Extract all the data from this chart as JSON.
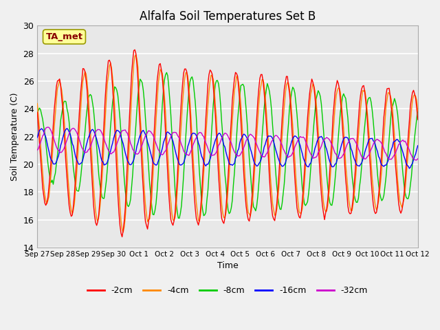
{
  "title": "Alfalfa Soil Temperatures Set B",
  "xlabel": "Time",
  "ylabel": "Soil Temperature (C)",
  "ylim": [
    14,
    30
  ],
  "background_color": "#e8e8e8",
  "fig_bg": "#f0f0f0",
  "grid_color": "white",
  "series_colors": {
    "-2cm": "#ff0000",
    "-4cm": "#ff8800",
    "-8cm": "#00cc00",
    "-16cm": "#0000ff",
    "-32cm": "#cc00cc"
  },
  "tick_labels": [
    "Sep 27",
    "Sep 28",
    "Sep 29",
    "Sep 30",
    "Oct 1",
    "Oct 2",
    "Oct 3",
    "Oct 4",
    "Oct 5",
    "Oct 6",
    "Oct 7",
    "Oct 8",
    "Oct 9",
    "Oct 10",
    "Oct 11",
    "Oct 12"
  ],
  "annotation_text": "TA_met",
  "annotation_bg": "#ffff99",
  "annotation_border": "#999900",
  "annotation_text_color": "#880000",
  "series_order": [
    "-2cm",
    "-4cm",
    "-8cm",
    "-16cm",
    "-32cm"
  ]
}
